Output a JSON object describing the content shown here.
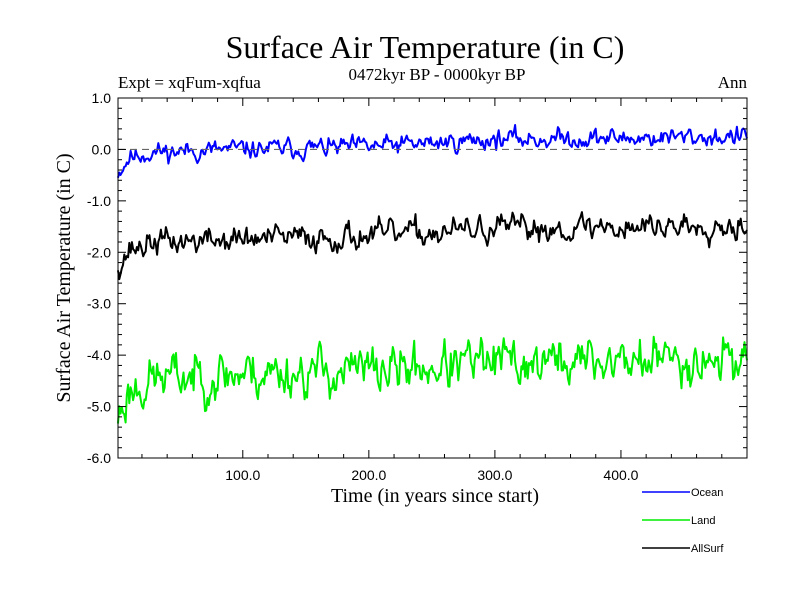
{
  "chart_data": {
    "type": "line",
    "title": "Surface Air Temperature (in C)",
    "subtitle_left": "Expt = xqFum-xqfua",
    "subtitle_center": "0472kyr BP - 0000kyr BP",
    "subtitle_right": "Ann",
    "xlabel": "Time (in years since start)",
    "ylabel": "Surface Air Temperature (in C)",
    "xlim": [
      1,
      500
    ],
    "ylim": [
      -6.0,
      1.0
    ],
    "x_ticks": [
      100,
      200,
      300,
      400
    ],
    "x_tick_labels": [
      "100.0",
      "200.0",
      "300.0",
      "400.0"
    ],
    "y_ticks": [
      1.0,
      0.0,
      -1.0,
      -2.0,
      -3.0,
      -4.0,
      -5.0,
      -6.0
    ],
    "y_tick_labels": [
      "1.0",
      "0.0",
      "-1.0",
      "-2.0",
      "-3.0",
      "-4.0",
      "-5.0",
      "-6.0"
    ],
    "reference_line": {
      "y": 0.0,
      "style": "dashed"
    },
    "series": [
      {
        "name": "Ocean",
        "color": "#0000ff",
        "keypoints": [
          [
            1,
            -0.45
          ],
          [
            10,
            -0.15
          ],
          [
            30,
            -0.05
          ],
          [
            100,
            0.0
          ],
          [
            200,
            0.05
          ],
          [
            300,
            0.2
          ],
          [
            400,
            0.22
          ],
          [
            500,
            0.25
          ]
        ],
        "noise_amp": 0.22,
        "seed": 11
      },
      {
        "name": "Land",
        "color": "#00ee00",
        "keypoints": [
          [
            1,
            -5.2
          ],
          [
            10,
            -4.7
          ],
          [
            30,
            -4.45
          ],
          [
            100,
            -4.35
          ],
          [
            200,
            -4.3
          ],
          [
            300,
            -4.15
          ],
          [
            400,
            -4.1
          ],
          [
            500,
            -4.05
          ]
        ],
        "noise_amp": 0.55,
        "seed": 23
      },
      {
        "name": "AllSurf",
        "color": "#000000",
        "keypoints": [
          [
            1,
            -2.25
          ],
          [
            10,
            -1.95
          ],
          [
            30,
            -1.8
          ],
          [
            100,
            -1.75
          ],
          [
            200,
            -1.68
          ],
          [
            300,
            -1.55
          ],
          [
            400,
            -1.5
          ],
          [
            500,
            -1.45
          ]
        ],
        "noise_amp": 0.3,
        "seed": 37
      }
    ]
  }
}
